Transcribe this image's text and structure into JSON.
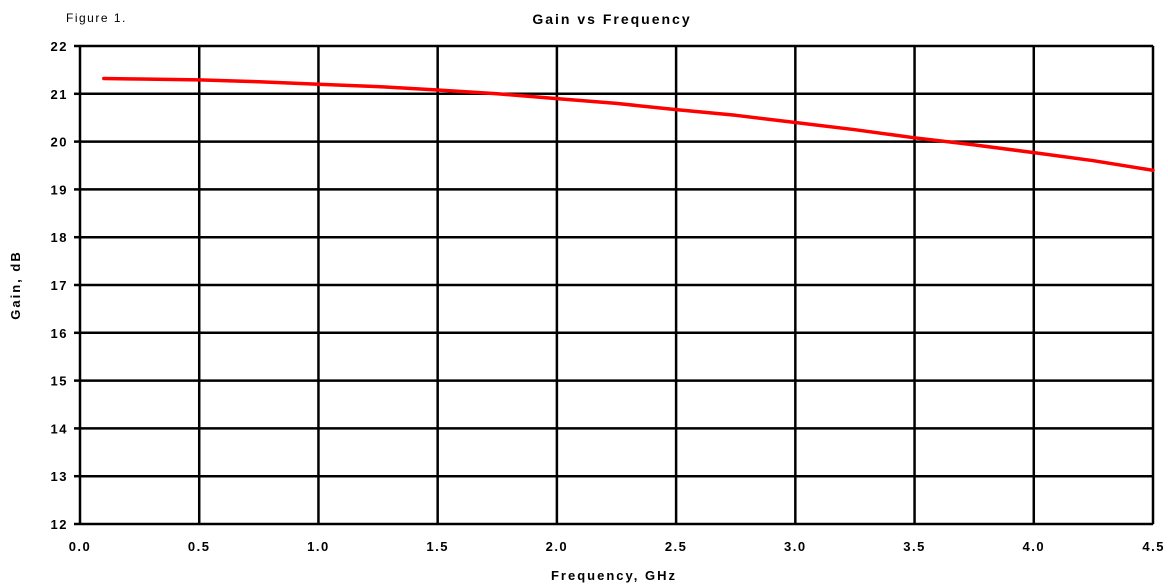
{
  "figure_label": "Figure 1.",
  "colors": {
    "series": "#ff0000",
    "grid": "#000000",
    "background": "#ffffff"
  },
  "chart_data": {
    "type": "line",
    "title": "Gain vs Frequency",
    "xlabel": "Frequency, GHz",
    "ylabel": "Gain, dB",
    "xlim": [
      0.0,
      4.5
    ],
    "ylim": [
      12,
      22
    ],
    "x_ticks": [
      "0.0",
      "0.5",
      "1.0",
      "1.5",
      "2.0",
      "2.5",
      "3.0",
      "3.5",
      "4.0",
      "4.5"
    ],
    "y_ticks": [
      "12",
      "13",
      "14",
      "15",
      "16",
      "17",
      "18",
      "19",
      "20",
      "21",
      "22"
    ],
    "grid": true,
    "legend": "none",
    "series": [
      {
        "x": [
          0.1,
          0.25,
          0.5,
          0.75,
          1.0,
          1.25,
          1.5,
          1.75,
          2.0,
          2.25,
          2.5,
          2.75,
          3.0,
          3.25,
          3.5,
          3.75,
          4.0,
          4.25,
          4.5
        ],
        "y": [
          21.32,
          21.31,
          21.29,
          21.25,
          21.2,
          21.15,
          21.08,
          21.0,
          20.9,
          20.8,
          20.67,
          20.55,
          20.4,
          20.25,
          20.08,
          19.93,
          19.77,
          19.6,
          19.4
        ]
      }
    ]
  }
}
